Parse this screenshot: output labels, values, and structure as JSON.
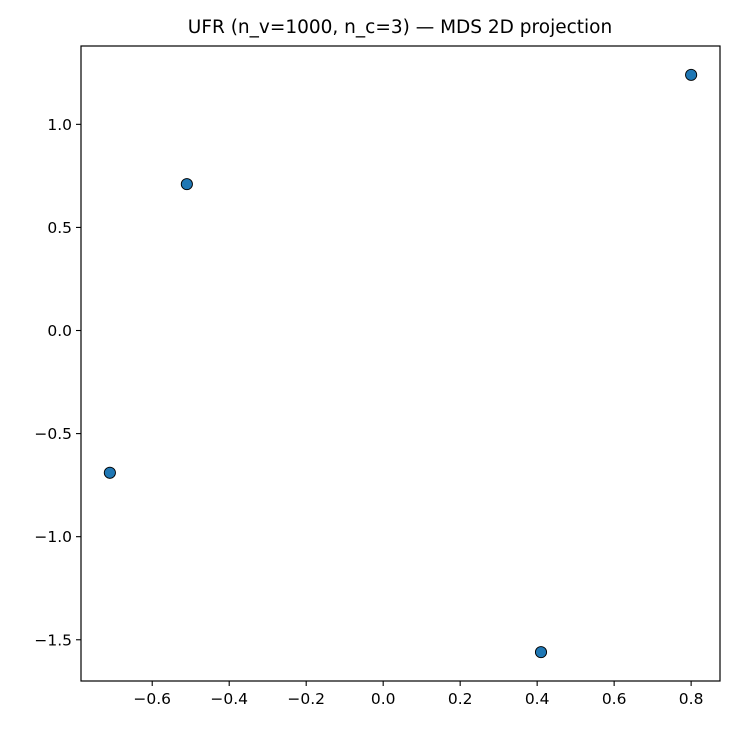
{
  "chart_data": {
    "type": "scatter",
    "title": "UFR (n_v=1000, n_c=3) — MDS 2D projection",
    "xlabel": "",
    "ylabel": "",
    "xlim": [
      -0.785,
      0.875
    ],
    "ylim": [
      -1.7,
      1.38
    ],
    "x_ticks": [
      -0.6,
      -0.4,
      -0.2,
      0.0,
      0.2,
      0.4,
      0.6,
      0.8
    ],
    "x_tick_labels": [
      "−0.6",
      "−0.4",
      "−0.2",
      "0.0",
      "0.2",
      "0.4",
      "0.6",
      "0.8"
    ],
    "y_ticks": [
      1.0,
      0.5,
      0.0,
      -0.5,
      -1.0,
      -1.5
    ],
    "y_tick_labels": [
      "1.0",
      "0.5",
      "0.0",
      "−0.5",
      "−1.0",
      "−1.5"
    ],
    "grid": false,
    "legend": "none",
    "marker_color": "#1f77b4",
    "marker_edge_color": "#000000",
    "points": [
      {
        "x": 0.8,
        "y": 1.24
      },
      {
        "x": -0.51,
        "y": 0.71
      },
      {
        "x": -0.71,
        "y": -0.69
      },
      {
        "x": 0.41,
        "y": -1.56
      }
    ]
  }
}
